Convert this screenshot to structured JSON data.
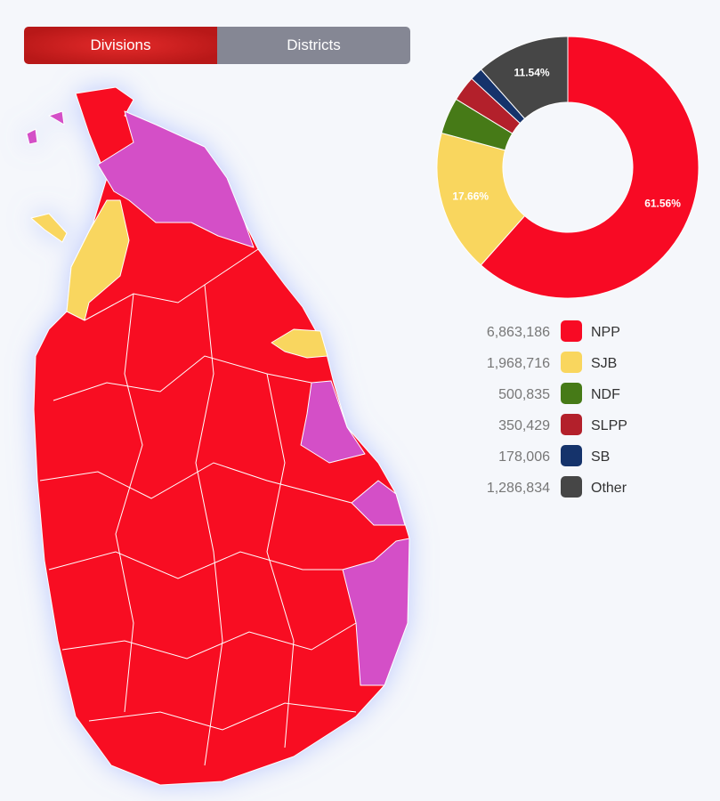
{
  "tabs": [
    "Divisions",
    "Districts"
  ],
  "chart_data": {
    "type": "donut",
    "categories": [
      "NPP",
      "SJB",
      "NDF",
      "SLPP",
      "SB",
      "Other"
    ],
    "values": [
      6863186,
      1968716,
      500835,
      350429,
      178006,
      1286834
    ],
    "value_labels": [
      "6,863,186",
      "1,968,716",
      "500,835",
      "350,429",
      "178,006",
      "1,286,834"
    ],
    "slice_labels": [
      "61.56%",
      "17.66%",
      null,
      null,
      null,
      "11.54%"
    ],
    "colors": [
      "#f80a24",
      "#f9d65e",
      "#467a17",
      "#b3202b",
      "#15336b",
      "#464646"
    ]
  }
}
